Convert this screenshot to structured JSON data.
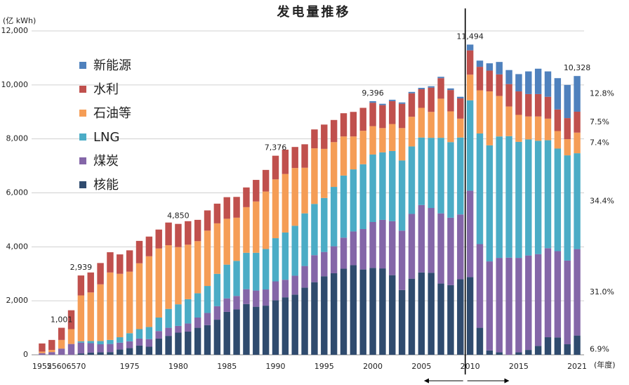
{
  "chart_data": {
    "type": "stacked_bar",
    "title": "发电量推移",
    "y_axis_label": "(亿 kWh)",
    "x_axis_label": "(年度)",
    "categories": [
      "1952",
      "55",
      "60",
      "65",
      "70",
      null,
      null,
      null,
      null,
      "1975",
      null,
      null,
      null,
      null,
      "1980",
      null,
      null,
      null,
      null,
      "1985",
      null,
      null,
      null,
      null,
      "1990",
      null,
      null,
      null,
      null,
      "1995",
      null,
      null,
      null,
      null,
      "2000",
      null,
      null,
      null,
      null,
      "2005",
      null,
      null,
      null,
      null,
      "2010",
      null,
      null,
      null,
      null,
      "2015",
      null,
      null,
      null,
      null,
      null,
      "2021"
    ],
    "series": [
      {
        "name": "核能",
        "color": "#2f4b6e",
        "share": {
          "value": 6.9,
          "label": "6.9%"
        },
        "values": [
          0,
          0,
          0,
          0,
          50,
          80,
          90,
          100,
          200,
          250,
          340,
          300,
          600,
          700,
          820,
          860,
          1000,
          1100,
          1300,
          1590,
          1680,
          1880,
          1780,
          1820,
          2020,
          2130,
          2230,
          2490,
          2690,
          2910,
          3020,
          3190,
          3320,
          3160,
          3220,
          3200,
          2950,
          2400,
          2820,
          3050,
          3040,
          2640,
          2580,
          2800,
          2880,
          1000,
          160,
          90,
          0,
          90,
          180,
          330,
          650,
          640,
          390,
          713
        ]
      },
      {
        "name": "煤炭",
        "color": "#8466a8",
        "share": {
          "value": 31.0,
          "label": "31.0%"
        },
        "values": [
          60,
          100,
          230,
          400,
          400,
          350,
          300,
          300,
          250,
          250,
          260,
          280,
          280,
          300,
          250,
          300,
          380,
          450,
          500,
          500,
          500,
          550,
          600,
          600,
          700,
          650,
          700,
          800,
          1000,
          900,
          1000,
          1150,
          1250,
          1500,
          1700,
          1800,
          2000,
          2200,
          2400,
          2500,
          2400,
          2600,
          2500,
          2400,
          3200,
          3100,
          3300,
          3500,
          3600,
          3500,
          3500,
          3400,
          3300,
          3200,
          3100,
          3202
        ]
      },
      {
        "name": "LNG",
        "color": "#4bacc6",
        "share": {
          "value": 34.4,
          "label": "34.4%"
        },
        "values": [
          0,
          0,
          0,
          0,
          50,
          80,
          120,
          150,
          200,
          300,
          350,
          450,
          500,
          700,
          800,
          900,
          900,
          1000,
          1200,
          1250,
          1300,
          1350,
          1400,
          1500,
          1600,
          1750,
          1850,
          1950,
          1900,
          2000,
          2200,
          2300,
          2300,
          2400,
          2500,
          2500,
          2600,
          2600,
          2500,
          2500,
          2600,
          2800,
          2800,
          2850,
          3350,
          4100,
          4300,
          4500,
          4500,
          4300,
          4300,
          4200,
          4000,
          3800,
          3900,
          3553
        ]
      },
      {
        "name": "石油等",
        "color": "#f59d56",
        "share": {
          "value": 7.4,
          "label": "7.4%"
        },
        "values": [
          60,
          80,
          320,
          550,
          1700,
          1800,
          2100,
          2500,
          2350,
          2280,
          2440,
          2620,
          2560,
          2360,
          2120,
          2020,
          1930,
          2050,
          1870,
          1700,
          1600,
          1690,
          1900,
          2130,
          2180,
          2170,
          2140,
          1690,
          2060,
          1820,
          1660,
          1450,
          1220,
          1240,
          1050,
          900,
          1000,
          1200,
          1100,
          1100,
          960,
          1450,
          1140,
          700,
          950,
          1600,
          2000,
          1500,
          1100,
          1000,
          850,
          900,
          800,
          650,
          600,
          764
        ]
      },
      {
        "name": "水利",
        "color": "#c0504d",
        "share": {
          "value": 7.5,
          "label": "7.5%"
        },
        "values": [
          300,
          370,
          451,
          700,
          739,
          740,
          790,
          750,
          720,
          790,
          830,
          730,
          700,
          840,
          860,
          870,
          790,
          750,
          730,
          800,
          770,
          730,
          800,
          800,
          876,
          900,
          780,
          870,
          700,
          900,
          820,
          860,
          910,
          850,
          870,
          850,
          850,
          900,
          870,
          690,
          900,
          760,
          790,
          750,
          900,
          870,
          770,
          800,
          830,
          870,
          830,
          830,
          810,
          800,
          780,
          775
        ]
      },
      {
        "name": "新能源",
        "color": "#4f81bd",
        "share": {
          "value": 12.8,
          "label": "12.8%"
        },
        "values": [
          0,
          0,
          0,
          0,
          0,
          0,
          0,
          0,
          0,
          0,
          0,
          0,
          0,
          0,
          0,
          0,
          0,
          0,
          0,
          0,
          0,
          0,
          0,
          0,
          0,
          0,
          0,
          0,
          0,
          0,
          0,
          0,
          0,
          0,
          56,
          50,
          50,
          50,
          50,
          50,
          50,
          50,
          60,
          60,
          214,
          230,
          270,
          460,
          520,
          640,
          840,
          940,
          940,
          1160,
          1230,
          1322
        ]
      }
    ],
    "annotations": [
      {
        "category": "60",
        "value": 1001,
        "label": "1,001"
      },
      {
        "category": "70",
        "value": 2939,
        "label": "2,939"
      },
      {
        "category": "1980",
        "value": 4850,
        "label": "4,850"
      },
      {
        "category": "1990",
        "value": 7376,
        "label": "7,376"
      },
      {
        "category": "2000",
        "value": 9396,
        "label": "9,396"
      },
      {
        "category": "2010",
        "value": 11494,
        "label": "11,494"
      },
      {
        "category": "2021",
        "value": 10328,
        "label": "10,328"
      }
    ],
    "divider_category": "2010",
    "ylim": [
      0,
      12000
    ],
    "yticks": [
      0,
      {
        "value": 2000,
        "label": "2,000"
      },
      {
        "value": 4000,
        "label": "4,000"
      },
      {
        "value": 6000,
        "label": "6,000"
      },
      {
        "value": 8000,
        "label": "8,000"
      },
      {
        "value": 10000,
        "label": "10,000"
      },
      {
        "value": 12000,
        "label": "12,000"
      }
    ],
    "grid": true,
    "legend": "upper left"
  }
}
